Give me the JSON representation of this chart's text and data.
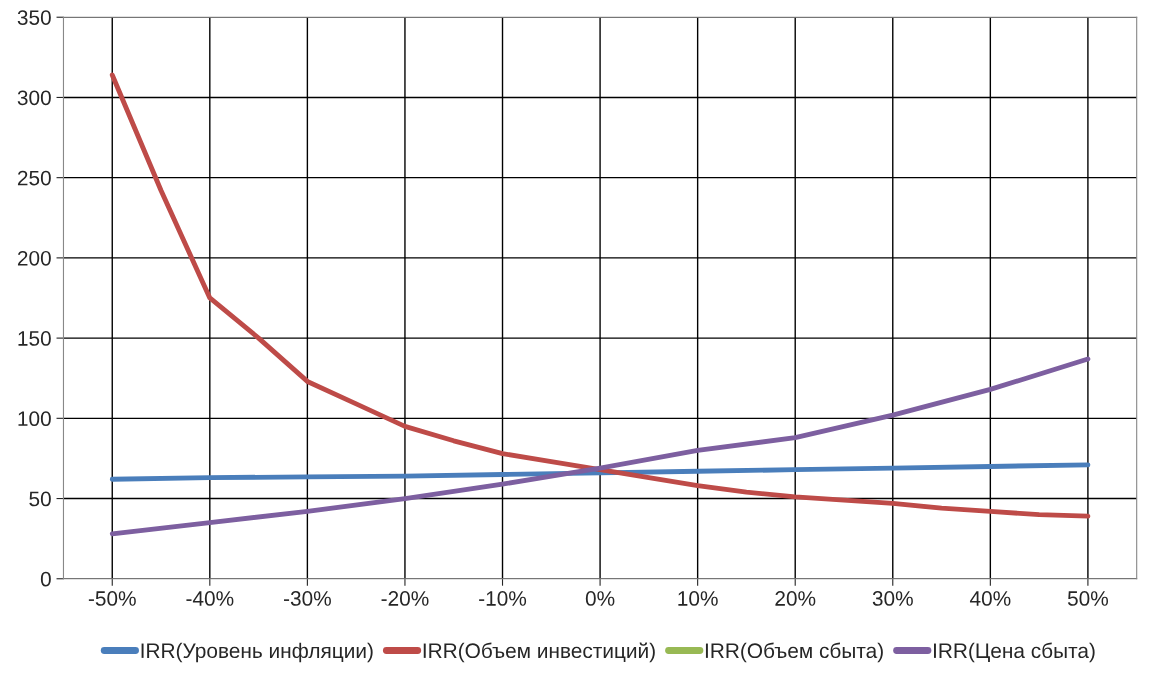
{
  "chart_data": {
    "type": "line",
    "xlim": [
      -55,
      55
    ],
    "xticks": [
      {
        "value": -50,
        "label": "-50%"
      },
      {
        "value": -40,
        "label": "-40%"
      },
      {
        "value": -30,
        "label": "-30%"
      },
      {
        "value": -20,
        "label": "-20%"
      },
      {
        "value": -10,
        "label": "-10%"
      },
      {
        "value": 0,
        "label": "0%"
      },
      {
        "value": 10,
        "label": "10%"
      },
      {
        "value": 20,
        "label": "20%"
      },
      {
        "value": 30,
        "label": "30%"
      },
      {
        "value": 40,
        "label": "40%"
      },
      {
        "value": 50,
        "label": "50%"
      }
    ],
    "ylim": [
      0,
      350
    ],
    "yticks": [
      0,
      50,
      100,
      150,
      200,
      250,
      300,
      350
    ],
    "grid": true,
    "legend": "bottom",
    "marker": "none",
    "line_style": "solid",
    "series": [
      {
        "name": "IRR(Уровень инфляции)",
        "color": "#4a7ebb",
        "x": [
          -50,
          -40,
          -30,
          -20,
          -10,
          0,
          10,
          20,
          30,
          40,
          50
        ],
        "values": [
          62,
          63,
          63.5,
          64,
          65,
          66,
          67,
          68,
          69,
          70,
          71
        ]
      },
      {
        "name": "IRR(Объем инвестиций)",
        "color": "#be4b48",
        "x": [
          -50,
          -45,
          -40,
          -35,
          -30,
          -25,
          -20,
          -15,
          -10,
          -5,
          0,
          5,
          10,
          15,
          20,
          25,
          30,
          35,
          40,
          45,
          50
        ],
        "values": [
          314,
          242,
          175,
          150,
          123,
          109,
          95,
          86,
          78,
          73,
          68,
          63,
          58,
          54,
          51,
          49,
          47,
          44,
          42,
          40,
          39
        ]
      },
      {
        "name": "IRR(Объем сбыта)",
        "color": "#98b954",
        "values": [
          null,
          null,
          null,
          null,
          null,
          null,
          null,
          null,
          null,
          null,
          null
        ]
      },
      {
        "name": "IRR(Цена сбыта)",
        "color": "#7d5fa0",
        "x": [
          -50,
          -40,
          -30,
          -20,
          -10,
          0,
          10,
          20,
          30,
          40,
          50
        ],
        "values": [
          28,
          35,
          42,
          50,
          59,
          69,
          80,
          88,
          102,
          118,
          137
        ]
      }
    ]
  }
}
